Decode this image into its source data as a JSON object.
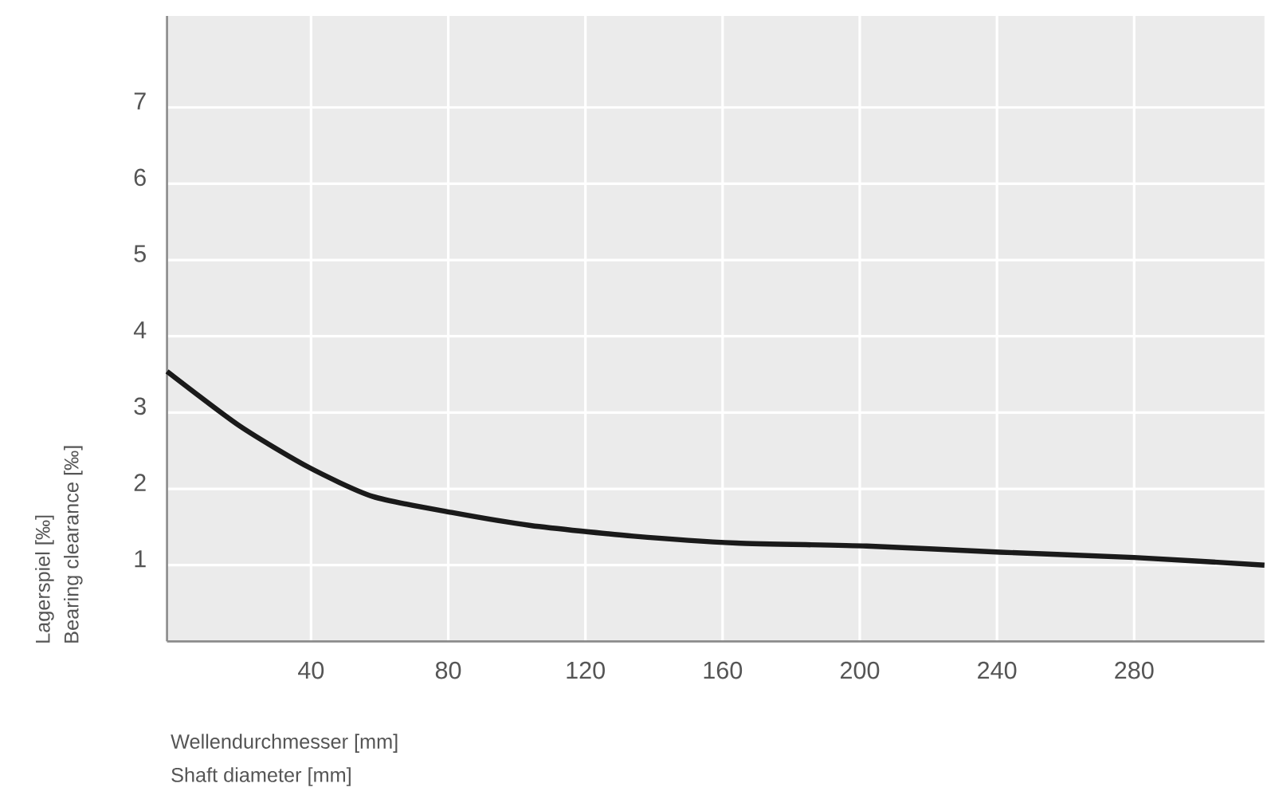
{
  "chart_data": {
    "type": "line",
    "xlabel": [
      "Wellendurchmesser [mm]",
      "Shaft diameter [mm]"
    ],
    "ylabel": [
      "Lagerspiel [‰]",
      "Bearing clearance [‰]"
    ],
    "x": [
      -2,
      19,
      39,
      58,
      81,
      104,
      134,
      164,
      202,
      241,
      280,
      318
    ],
    "series": [
      {
        "color": "#1a1a1a",
        "values": [
          3.54,
          2.83,
          2.29,
          1.9,
          1.69,
          1.52,
          1.38,
          1.29,
          1.25,
          1.17,
          1.1,
          1.0
        ]
      }
    ],
    "xlim": [
      -2,
      318
    ],
    "ylim": [
      0,
      8.2
    ],
    "xticks": [
      40,
      80,
      120,
      160,
      200,
      240,
      280
    ],
    "yticks": [
      1,
      2,
      3,
      4,
      5,
      6,
      7
    ],
    "grid": true
  }
}
